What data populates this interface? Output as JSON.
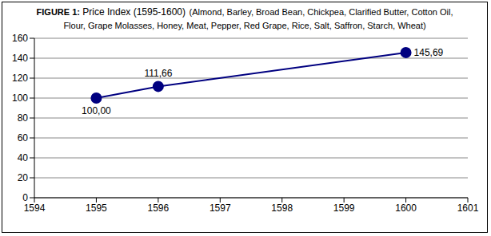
{
  "chart_data": {
    "type": "line",
    "title": "FIGURE 1: Price Index (1595-1600)",
    "subtitle": "(Almond, Barley, Broad Bean, Chickpea, Clarified Butter, Cotton Oil, Flour, Grape Molasses, Honey, Meat, Pepper, Red Grape, Rice, Salt, Saffron, Starch, Wheat)",
    "x": [
      1595,
      1596,
      1600
    ],
    "values": [
      100,
      111.66,
      145.69
    ],
    "value_labels": [
      "100,00",
      "111,66",
      "145,69"
    ],
    "data_labels": true,
    "color": "#000080",
    "marker": "circle",
    "xlim": [
      1594,
      1601
    ],
    "xticks": [
      1594,
      1595,
      1596,
      1597,
      1598,
      1599,
      1600,
      1601
    ],
    "ylim": [
      0,
      160
    ],
    "yticks": [
      0,
      20,
      40,
      60,
      80,
      100,
      120,
      140,
      160
    ],
    "grid": true
  }
}
